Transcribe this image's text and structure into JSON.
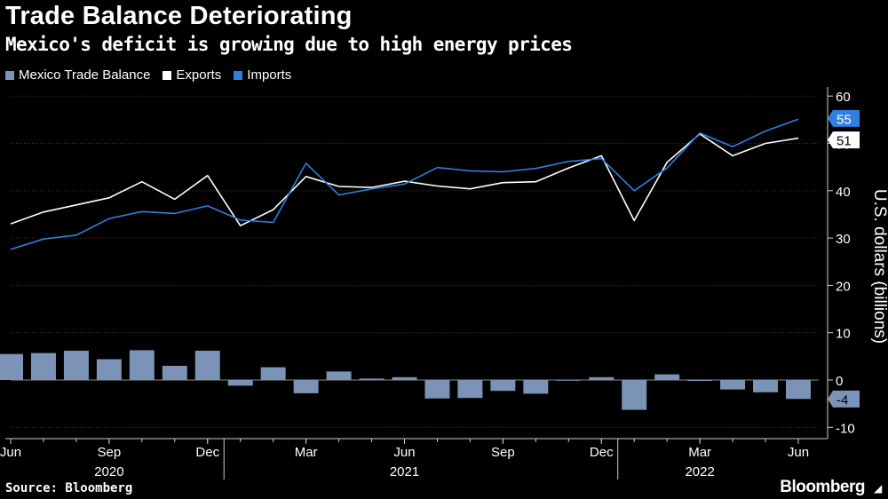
{
  "title": "Trade Balance Deteriorating",
  "subtitle": "Mexico's deficit is growing due to high energy prices",
  "source": "Source: Bloomberg",
  "brand": "Bloomberg",
  "colors": {
    "balance": "#7b93b6",
    "exports": "#ffffff",
    "imports": "#2f7fe0",
    "grid": "#3a3a3a",
    "zero": "#8a8a8a"
  },
  "chart_data": {
    "type": "bar+line",
    "ylabel": "U.S. dollars (billions)",
    "ylim": [
      -12,
      62
    ],
    "yticks": [
      -10,
      0,
      10,
      20,
      30,
      40,
      50,
      60
    ],
    "x": [
      "2020-06",
      "2020-07",
      "2020-08",
      "2020-09",
      "2020-10",
      "2020-11",
      "2020-12",
      "2021-01",
      "2021-02",
      "2021-03",
      "2021-04",
      "2021-05",
      "2021-06",
      "2021-07",
      "2021-08",
      "2021-09",
      "2021-10",
      "2021-11",
      "2021-12",
      "2022-01",
      "2022-02",
      "2022-03",
      "2022-04",
      "2022-05",
      "2022-06"
    ],
    "xtick_labels": [
      {
        "index": 0,
        "label": "Jun"
      },
      {
        "index": 3,
        "label": "Sep"
      },
      {
        "index": 6,
        "label": "Dec"
      },
      {
        "index": 9,
        "label": "Mar"
      },
      {
        "index": 12,
        "label": "Jun"
      },
      {
        "index": 15,
        "label": "Sep"
      },
      {
        "index": 18,
        "label": "Dec"
      },
      {
        "index": 21,
        "label": "Mar"
      },
      {
        "index": 24,
        "label": "Jun"
      }
    ],
    "year_labels": [
      {
        "index": 3,
        "label": "2020"
      },
      {
        "index": 12,
        "label": "2021"
      },
      {
        "index": 21,
        "label": "2022"
      }
    ],
    "year_separators": [
      7,
      19
    ],
    "series": [
      {
        "name": "Mexico Trade Balance",
        "kind": "bar",
        "color": "#7b93b6",
        "values": [
          5.5,
          5.7,
          6.2,
          4.4,
          6.3,
          3.0,
          6.2,
          -1.2,
          2.7,
          -2.8,
          1.8,
          0.3,
          0.6,
          -3.9,
          -3.8,
          -2.3,
          -2.9,
          -0.1,
          0.6,
          -6.3,
          1.2,
          -0.2,
          -2.0,
          -2.6,
          -4.0
        ]
      },
      {
        "name": "Exports",
        "kind": "line",
        "color": "#ffffff",
        "values": [
          33.0,
          35.5,
          37.0,
          38.5,
          41.9,
          38.2,
          43.2,
          32.6,
          36.0,
          43.0,
          40.9,
          40.7,
          42.0,
          41.0,
          40.4,
          41.7,
          41.9,
          44.8,
          47.4,
          33.7,
          46.0,
          52.0,
          47.4,
          50.0,
          51.1
        ]
      },
      {
        "name": "Imports",
        "kind": "line",
        "color": "#2f7fe0",
        "values": [
          27.6,
          29.8,
          30.6,
          34.1,
          35.6,
          35.2,
          36.8,
          33.8,
          33.3,
          45.8,
          39.1,
          40.4,
          41.4,
          44.9,
          44.2,
          44.0,
          44.7,
          46.2,
          46.8,
          40.0,
          44.8,
          52.2,
          49.3,
          52.6,
          55.1
        ]
      }
    ],
    "end_labels": [
      {
        "series": "Imports",
        "text": "55",
        "value": 55.1
      },
      {
        "series": "Exports",
        "text": "51",
        "value": 51.1
      },
      {
        "series": "Mexico Trade Balance",
        "text": "-4",
        "value": -4.0
      }
    ],
    "grid": true,
    "legend_position": "top-left"
  }
}
